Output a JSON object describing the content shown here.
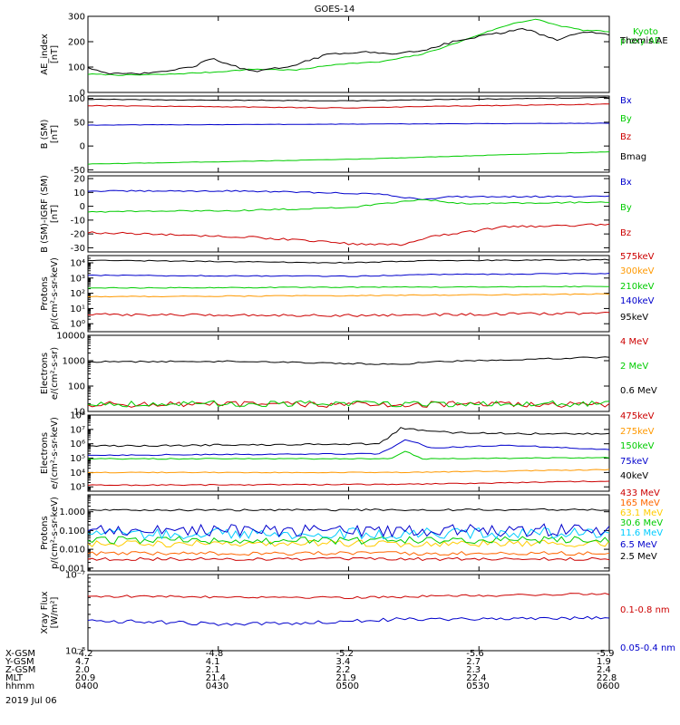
{
  "title": "GOES-14",
  "date_label": "2019 Jul 06",
  "time_axis": {
    "row_labels": [
      "X-GSM",
      "Y-GSM",
      "Z-GSM",
      "MLT",
      "hhmm"
    ],
    "ticks": [
      {
        "rows": [
          "-4.2",
          "4.7",
          "2.0",
          "20.9",
          "0400"
        ]
      },
      {
        "rows": [
          "-4.8",
          "4.1",
          "2.1",
          "21.4",
          "0430"
        ]
      },
      {
        "rows": [
          "-5.2",
          "3.4",
          "2.2",
          "21.9",
          "0500"
        ]
      },
      {
        "rows": [
          "-5.6",
          "2.7",
          "2.3",
          "22.4",
          "0530"
        ]
      },
      {
        "rows": [
          "-5.9",
          "1.9",
          "2.4",
          "22.8",
          "0600"
        ]
      }
    ]
  },
  "chart_data": [
    {
      "type": "line",
      "ylabel": [
        "AE_index",
        "[nT]"
      ],
      "ylim": [
        0,
        300
      ],
      "yticks": [
        0,
        100,
        200,
        300
      ],
      "ytick_labels": [
        "0",
        "100",
        "200",
        "300"
      ],
      "log": false,
      "series": [
        {
          "name": "Kyoto proxy AE",
          "color": "#00cc00",
          "jitter": 2,
          "values": [
            [
              0,
              72
            ],
            [
              0.08,
              68
            ],
            [
              0.16,
              72
            ],
            [
              0.24,
              80
            ],
            [
              0.32,
              92
            ],
            [
              0.4,
              88
            ],
            [
              0.48,
              112
            ],
            [
              0.56,
              120
            ],
            [
              0.64,
              150
            ],
            [
              0.7,
              190
            ],
            [
              0.76,
              235
            ],
            [
              0.82,
              275
            ],
            [
              0.86,
              288
            ],
            [
              0.9,
              265
            ],
            [
              0.95,
              245
            ],
            [
              1,
              240
            ]
          ]
        },
        {
          "name": "Themis AE",
          "color": "#000000",
          "jitter": 4,
          "values": [
            [
              0,
              100
            ],
            [
              0.04,
              72
            ],
            [
              0.12,
              75
            ],
            [
              0.2,
              100
            ],
            [
              0.24,
              135
            ],
            [
              0.27,
              110
            ],
            [
              0.32,
              80
            ],
            [
              0.4,
              110
            ],
            [
              0.46,
              150
            ],
            [
              0.52,
              160
            ],
            [
              0.58,
              152
            ],
            [
              0.64,
              165
            ],
            [
              0.7,
              200
            ],
            [
              0.76,
              225
            ],
            [
              0.84,
              250
            ],
            [
              0.9,
              205
            ],
            [
              0.95,
              240
            ],
            [
              1,
              225
            ]
          ]
        }
      ]
    },
    {
      "type": "line",
      "ylabel": [
        "B (SM)",
        "[nT]"
      ],
      "ylim": [
        -55,
        105
      ],
      "yticks": [
        -50,
        0,
        50,
        100
      ],
      "ytick_labels": [
        "-50",
        "0",
        "50",
        "100"
      ],
      "log": false,
      "series": [
        {
          "name": "Bx",
          "color": "#0000cc",
          "jitter": 0.5,
          "values": [
            [
              0,
              44
            ],
            [
              0.5,
              46
            ],
            [
              1,
              48
            ]
          ]
        },
        {
          "name": "By",
          "color": "#00cc00",
          "jitter": 0.5,
          "values": [
            [
              0,
              -38
            ],
            [
              0.5,
              -28
            ],
            [
              1,
              -12
            ]
          ]
        },
        {
          "name": "Bz",
          "color": "#cc0000",
          "jitter": 0.8,
          "values": [
            [
              0,
              85
            ],
            [
              0.5,
              80
            ],
            [
              0.7,
              84
            ],
            [
              1,
              88
            ]
          ]
        },
        {
          "name": "Bmag",
          "color": "#000000",
          "jitter": 0.8,
          "values": [
            [
              0,
              98
            ],
            [
              0.5,
              95
            ],
            [
              0.7,
              98
            ],
            [
              1,
              102
            ]
          ]
        }
      ]
    },
    {
      "type": "line",
      "ylabel": [
        "B (SM)-IGRF (SM)",
        "[nT]"
      ],
      "ylim": [
        -33,
        22
      ],
      "yticks": [
        -30,
        -20,
        -10,
        0,
        10,
        20
      ],
      "ytick_labels": [
        "-30",
        "-20",
        "-10",
        "0",
        "10",
        "20"
      ],
      "log": false,
      "series": [
        {
          "name": "Bx",
          "color": "#0000cc",
          "jitter": 0.5,
          "values": [
            [
              0,
              11
            ],
            [
              0.3,
              11
            ],
            [
              0.55,
              9
            ],
            [
              0.64,
              5
            ],
            [
              0.7,
              7
            ],
            [
              1,
              7
            ]
          ]
        },
        {
          "name": "By",
          "color": "#00cc00",
          "jitter": 0.5,
          "values": [
            [
              0,
              -4
            ],
            [
              0.3,
              -3
            ],
            [
              0.5,
              -1
            ],
            [
              0.64,
              5
            ],
            [
              0.72,
              2
            ],
            [
              1,
              3
            ]
          ]
        },
        {
          "name": "Bz",
          "color": "#cc0000",
          "jitter": 0.8,
          "values": [
            [
              0,
              -19
            ],
            [
              0.3,
              -22
            ],
            [
              0.5,
              -27
            ],
            [
              0.6,
              -28
            ],
            [
              0.66,
              -22
            ],
            [
              0.8,
              -15
            ],
            [
              1,
              -13
            ]
          ]
        }
      ]
    },
    {
      "type": "line",
      "ylabel": [
        "Protons",
        "p/(cm²-s-sr-keV)"
      ],
      "ylim": [
        0.3,
        30000
      ],
      "yticks": [
        1,
        10,
        100,
        1000,
        10000
      ],
      "ytick_labels": [
        "10⁰",
        "10¹",
        "10²",
        "10³",
        "10⁴"
      ],
      "log": true,
      "series": [
        {
          "name": "575keV",
          "color": "#cc0000",
          "jitter": 0.08,
          "values": [
            [
              0,
              4
            ],
            [
              0.5,
              3.5
            ],
            [
              1,
              5
            ]
          ]
        },
        {
          "name": "300keV",
          "color": "#ff9900",
          "jitter": 0.03,
          "values": [
            [
              0,
              60
            ],
            [
              0.5,
              70
            ],
            [
              1,
              90
            ]
          ]
        },
        {
          "name": "210keV",
          "color": "#00cc00",
          "jitter": 0.03,
          "values": [
            [
              0,
              220
            ],
            [
              0.5,
              250
            ],
            [
              1,
              280
            ]
          ]
        },
        {
          "name": "140keV",
          "color": "#0000cc",
          "jitter": 0.03,
          "values": [
            [
              0,
              1500
            ],
            [
              0.5,
              1300
            ],
            [
              0.65,
              1700
            ],
            [
              1,
              2000
            ]
          ]
        },
        {
          "name": "95keV",
          "color": "#000000",
          "jitter": 0.03,
          "values": [
            [
              0,
              15000
            ],
            [
              0.5,
              10000
            ],
            [
              0.65,
              14000
            ],
            [
              1,
              16000
            ]
          ]
        }
      ]
    },
    {
      "type": "line",
      "ylabel": [
        "Electrons",
        "e/(cm²-s-sr)"
      ],
      "ylim": [
        10,
        10000
      ],
      "yticks": [
        10,
        100,
        1000,
        10000
      ],
      "ytick_labels": [
        "10",
        "100",
        "1000",
        "10000"
      ],
      "log": true,
      "series": [
        {
          "name": "4 MeV",
          "color": "#cc0000",
          "jitter": 0.12,
          "values": [
            [
              0,
              19
            ],
            [
              1,
              19
            ]
          ]
        },
        {
          "name": "2 MeV",
          "color": "#00cc00",
          "jitter": 0.12,
          "values": [
            [
              0,
              20
            ],
            [
              1,
              20
            ]
          ]
        },
        {
          "name": "0.6 MeV",
          "color": "#000000",
          "jitter": 0.03,
          "values": [
            [
              0,
              900
            ],
            [
              0.3,
              950
            ],
            [
              0.6,
              700
            ],
            [
              0.65,
              900
            ],
            [
              1,
              1400
            ]
          ]
        }
      ]
    },
    {
      "type": "line",
      "ylabel": [
        "Electrons",
        "e/(cm²-s-sr-keV)"
      ],
      "ylim": [
        500,
        100000000
      ],
      "yticks": [
        1000,
        10000,
        100000,
        1000000,
        10000000,
        100000000
      ],
      "ytick_labels": [
        "10³",
        "10⁴",
        "10⁵",
        "10⁶",
        "10⁷",
        "10⁸"
      ],
      "log": true,
      "series": [
        {
          "name": "475keV",
          "color": "#cc0000",
          "jitter": 0.04,
          "values": [
            [
              0,
              1300
            ],
            [
              0.6,
              1500
            ],
            [
              1,
              2500
            ]
          ]
        },
        {
          "name": "275keV",
          "color": "#ff9900",
          "jitter": 0.03,
          "values": [
            [
              0,
              10000
            ],
            [
              0.6,
              10000
            ],
            [
              1,
              16000
            ]
          ]
        },
        {
          "name": "150keV",
          "color": "#00cc00",
          "jitter": 0.03,
          "values": [
            [
              0,
              90000
            ],
            [
              0.58,
              90000
            ],
            [
              0.61,
              300000
            ],
            [
              0.64,
              90000
            ],
            [
              1,
              110000
            ]
          ]
        },
        {
          "name": "75keV",
          "color": "#0000cc",
          "jitter": 0.04,
          "values": [
            [
              0,
              160000
            ],
            [
              0.56,
              200000
            ],
            [
              0.61,
              2000000
            ],
            [
              0.66,
              500000
            ],
            [
              0.8,
              800000
            ],
            [
              1,
              400000
            ]
          ]
        },
        {
          "name": "40keV",
          "color": "#000000",
          "jitter": 0.06,
          "values": [
            [
              0,
              700000
            ],
            [
              0.56,
              1000000
            ],
            [
              0.6,
              12000000
            ],
            [
              0.7,
              6000000
            ],
            [
              0.85,
              5000000
            ],
            [
              1,
              5000000
            ]
          ]
        }
      ]
    },
    {
      "type": "line",
      "ylabel": [
        "Protons",
        "p/(cm²-s-sr-keV)"
      ],
      "ylim": [
        0.0007,
        8
      ],
      "yticks": [
        0.001,
        0.01,
        0.1,
        1
      ],
      "ytick_labels": [
        "0.001",
        "0.010",
        "0.100",
        "1.000"
      ],
      "log": true,
      "series": [
        {
          "name": "433 MeV",
          "color": "#cc0000",
          "jitter": 0.08,
          "values": [
            [
              0,
              0.003
            ],
            [
              1,
              0.003
            ]
          ]
        },
        {
          "name": "165 MeV",
          "color": "#ff6600",
          "jitter": 0.1,
          "values": [
            [
              0,
              0.006
            ],
            [
              1,
              0.006
            ]
          ]
        },
        {
          "name": "63.1 MeV",
          "color": "#ffcc00",
          "jitter": 0.18,
          "values": [
            [
              0,
              0.02
            ],
            [
              1,
              0.02
            ]
          ]
        },
        {
          "name": "30.6 MeV",
          "color": "#00cc00",
          "jitter": 0.2,
          "values": [
            [
              0,
              0.03
            ],
            [
              1,
              0.03
            ]
          ]
        },
        {
          "name": "11.6 MeV",
          "color": "#00ccff",
          "jitter": 0.3,
          "values": [
            [
              0,
              0.07
            ],
            [
              1,
              0.07
            ]
          ]
        },
        {
          "name": "6.5 MeV",
          "color": "#0000cc",
          "jitter": 0.35,
          "values": [
            [
              0,
              0.1
            ],
            [
              1,
              0.1
            ]
          ]
        },
        {
          "name": "2.5 MeV",
          "color": "#000000",
          "jitter": 0.05,
          "values": [
            [
              0,
              1.2
            ],
            [
              1,
              1.3
            ]
          ]
        }
      ]
    },
    {
      "type": "line",
      "ylabel": [
        "Xray Flux",
        "[W/m²]"
      ],
      "ylim": [
        1e-08,
        1e-07
      ],
      "yticks": [
        1e-08,
        1e-07
      ],
      "ytick_labels": [
        "10⁻⁸",
        "10⁻⁷"
      ],
      "log": true,
      "series": [
        {
          "name": "0.1-0.8 nm",
          "color": "#cc0000",
          "jitter": 0.015,
          "values": [
            [
              0,
              5.2e-08
            ],
            [
              0.5,
              5e-08
            ],
            [
              1,
              5.6e-08
            ]
          ]
        },
        {
          "name": "0.05-0.4 nm",
          "color": "#0000cc",
          "jitter": 0.025,
          "values": [
            [
              0,
              2.5e-08
            ],
            [
              0.3,
              2.2e-08
            ],
            [
              0.6,
              2.6e-08
            ],
            [
              1,
              2.7e-08
            ]
          ]
        }
      ]
    }
  ]
}
